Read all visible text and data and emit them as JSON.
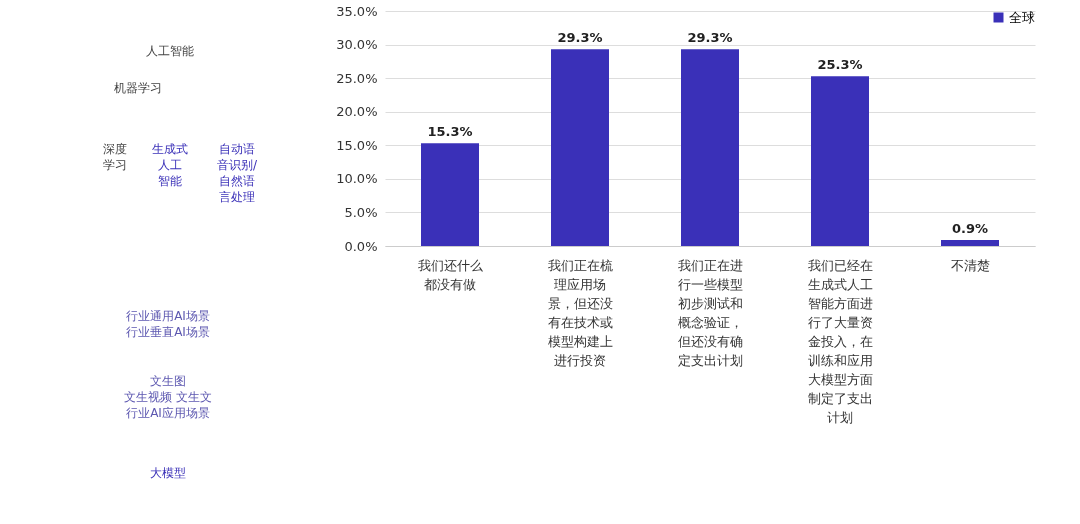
{
  "chart_data": [
    {
      "type": "other",
      "annotations": [
        "人工智能",
        "机器学习",
        "深度学习",
        "生成式人工智能",
        "自动语音识别/自然语言处理",
        "行业通用AI场景行业垂直AI场景",
        "文生图文生视频 文生文行业AI应用场景",
        "大模型"
      ]
    },
    {
      "type": "bar",
      "categories": [
        "我们还什么都没有做",
        "我们正在梳理应用场景，但还没有在技术或模型构建上进行投资",
        "我们正在进行一些模型初步测试和概念验证，但还没有确定支出计划",
        "我们已经在生成式人工智能方面进行了大量资金投入，在训练和应用大模型方面制定了支出计划",
        "不清楚"
      ],
      "series": [
        {
          "name": "全球",
          "color": "#3a30b8",
          "values": [
            15.3,
            29.3,
            29.3,
            25.3,
            0.9
          ]
        }
      ],
      "ylim": [
        0,
        35
      ],
      "yticks": [
        {
          "value": 0,
          "label": "0.0%"
        },
        {
          "value": 5,
          "label": "5.0%"
        },
        {
          "value": 10,
          "label": "10.0%"
        },
        {
          "value": 15,
          "label": "15.0%"
        },
        {
          "value": 20,
          "label": "20.0%"
        },
        {
          "value": 25,
          "label": "25.0%"
        },
        {
          "value": 30,
          "label": "30.0%"
        },
        {
          "value": 35,
          "label": "35.0%"
        }
      ],
      "value_labels": [
        "15.3%",
        "29.3%",
        "29.3%",
        "25.3%",
        "0.9%"
      ],
      "grid": "y",
      "legend": "top right"
    }
  ]
}
